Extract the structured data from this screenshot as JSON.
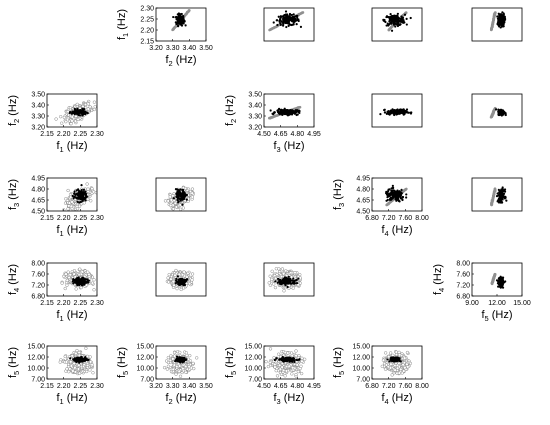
{
  "chart_data": {
    "type": "scatter",
    "layout": "scatterplot matrix (upper triangle: black & gray markers, lower triangle: gray open circles with black points)",
    "variables": [
      {
        "base": "f",
        "sub": "1",
        "unit": "(Hz)",
        "ticks": [
          "2.15",
          "2.20",
          "2.25",
          "2.30"
        ],
        "range": [
          2.15,
          2.3
        ]
      },
      {
        "base": "f",
        "sub": "2",
        "unit": "(Hz)",
        "ticks": [
          "3.20",
          "3.30",
          "3.40",
          "3.50"
        ],
        "range": [
          3.2,
          3.5
        ]
      },
      {
        "base": "f",
        "sub": "3",
        "unit": "(Hz)",
        "ticks": [
          "4.50",
          "4.65",
          "4.80",
          "4.95"
        ],
        "range": [
          4.5,
          4.95
        ]
      },
      {
        "base": "f",
        "sub": "4",
        "unit": "(Hz)",
        "ticks": [
          "6.80",
          "7.20",
          "7.60",
          "8.00"
        ],
        "range": [
          6.8,
          8.0
        ]
      },
      {
        "base": "f",
        "sub": "5",
        "unit": "(Hz)",
        "ticks": [
          "9.00",
          "12.00",
          "15.00"
        ],
        "range": [
          7.5,
          15.5
        ],
        "yticks": [
          "7.00",
          "10.00",
          "12.00",
          "15.00"
        ]
      }
    ],
    "panels": [
      {
        "row": 0,
        "col": 1,
        "x_var": "f2",
        "y_var": "f1",
        "labeled": true,
        "style": "upper",
        "black_cluster": {
          "cx": 3.345,
          "cy": 2.245,
          "sx": 0.012,
          "sy": 0.012
        },
        "gray_line": {
          "x0": 3.3,
          "y0": 2.2,
          "x1": 3.4,
          "y1": 2.29
        }
      },
      {
        "row": 0,
        "col": 2,
        "x_var": "f3",
        "y_var": "f1",
        "labeled": false,
        "style": "upper",
        "black_cluster": {
          "cx": 4.72,
          "cy": 2.245,
          "sx": 0.05,
          "sy": 0.012
        },
        "gray_line": {
          "x0": 4.55,
          "y0": 2.2,
          "x1": 4.85,
          "y1": 2.28
        }
      },
      {
        "row": 0,
        "col": 3,
        "x_var": "f4",
        "y_var": "f1",
        "labeled": false,
        "style": "upper",
        "black_cluster": {
          "cx": 7.35,
          "cy": 2.245,
          "sx": 0.12,
          "sy": 0.012
        },
        "gray_line": {
          "x0": 7.2,
          "y0": 2.2,
          "x1": 7.62,
          "y1": 2.28
        }
      },
      {
        "row": 0,
        "col": 4,
        "x_var": "f5",
        "y_var": "f1",
        "labeled": false,
        "style": "upper",
        "black_cluster": {
          "cx": 12.2,
          "cy": 2.245,
          "sx": 0.25,
          "sy": 0.015
        },
        "gray_line": {
          "x0": 10.6,
          "y0": 2.2,
          "x1": 11.2,
          "y1": 2.28
        }
      },
      {
        "row": 1,
        "col": 0,
        "x_var": "f1",
        "y_var": "f2",
        "labeled": true,
        "style": "lower",
        "gray_cloud": {
          "cx": 2.245,
          "cy": 3.34,
          "sx": 0.018,
          "sy": 0.035,
          "rho": 0.55
        },
        "black_cluster": {
          "cx": 2.245,
          "cy": 3.335,
          "sx": 0.01,
          "sy": 0.012
        }
      },
      {
        "row": 1,
        "col": 2,
        "x_var": "f3",
        "y_var": "f2",
        "labeled": true,
        "style": "upper",
        "black_cluster": {
          "cx": 4.71,
          "cy": 3.335,
          "sx": 0.05,
          "sy": 0.012
        },
        "gray_line": {
          "x0": 4.55,
          "y0": 3.28,
          "x1": 4.82,
          "y1": 3.38
        }
      },
      {
        "row": 1,
        "col": 3,
        "x_var": "f4",
        "y_var": "f2",
        "labeled": false,
        "style": "upper",
        "black_cluster": {
          "cx": 7.4,
          "cy": 3.335,
          "sx": 0.12,
          "sy": 0.012
        },
        "gray_line": null
      },
      {
        "row": 1,
        "col": 4,
        "x_var": "f5",
        "y_var": "f2",
        "labeled": false,
        "style": "upper",
        "black_cluster": {
          "cx": 12.2,
          "cy": 3.335,
          "sx": 0.25,
          "sy": 0.012
        },
        "gray_line": {
          "x0": 10.6,
          "y0": 3.29,
          "x1": 11.2,
          "y1": 3.37
        }
      },
      {
        "row": 2,
        "col": 0,
        "x_var": "f1",
        "y_var": "f3",
        "labeled": true,
        "style": "lower",
        "gray_cloud": {
          "cx": 2.245,
          "cy": 4.68,
          "sx": 0.016,
          "sy": 0.06,
          "rho": 0.6
        },
        "black_cluster": {
          "cx": 2.25,
          "cy": 4.71,
          "sx": 0.01,
          "sy": 0.04
        }
      },
      {
        "row": 2,
        "col": 1,
        "x_var": "f2",
        "y_var": "f3",
        "labeled": false,
        "style": "lower",
        "gray_cloud": {
          "cx": 3.345,
          "cy": 4.68,
          "sx": 0.03,
          "sy": 0.06,
          "rho": 0.5
        },
        "black_cluster": {
          "cx": 3.35,
          "cy": 4.71,
          "sx": 0.015,
          "sy": 0.04
        }
      },
      {
        "row": 2,
        "col": 3,
        "x_var": "f4",
        "y_var": "f3",
        "labeled": true,
        "style": "upper",
        "black_cluster": {
          "cx": 7.35,
          "cy": 4.71,
          "sx": 0.12,
          "sy": 0.04
        },
        "gray_line": {
          "x0": 7.15,
          "y0": 4.58,
          "x1": 7.62,
          "y1": 4.8
        }
      },
      {
        "row": 2,
        "col": 4,
        "x_var": "f5",
        "y_var": "f3",
        "labeled": false,
        "style": "upper",
        "black_cluster": {
          "cx": 12.2,
          "cy": 4.71,
          "sx": 0.25,
          "sy": 0.04
        },
        "gray_line": {
          "x0": 10.6,
          "y0": 4.58,
          "x1": 11.2,
          "y1": 4.8
        }
      },
      {
        "row": 3,
        "col": 0,
        "x_var": "f1",
        "y_var": "f4",
        "labeled": true,
        "style": "lower",
        "gray_cloud": {
          "cx": 2.245,
          "cy": 7.42,
          "sx": 0.018,
          "sy": 0.13,
          "rho": 0.0
        },
        "black_cluster": {
          "cx": 2.25,
          "cy": 7.33,
          "sx": 0.01,
          "sy": 0.06
        }
      },
      {
        "row": 3,
        "col": 1,
        "x_var": "f2",
        "y_var": "f4",
        "labeled": false,
        "style": "lower",
        "gray_cloud": {
          "cx": 3.345,
          "cy": 7.42,
          "sx": 0.03,
          "sy": 0.13,
          "rho": 0.0
        },
        "black_cluster": {
          "cx": 3.35,
          "cy": 7.33,
          "sx": 0.015,
          "sy": 0.06
        }
      },
      {
        "row": 3,
        "col": 2,
        "x_var": "f3",
        "y_var": "f4",
        "labeled": false,
        "style": "lower",
        "gray_cloud": {
          "cx": 4.7,
          "cy": 7.42,
          "sx": 0.06,
          "sy": 0.13,
          "rho": 0.0
        },
        "black_cluster": {
          "cx": 4.71,
          "cy": 7.33,
          "sx": 0.04,
          "sy": 0.06
        }
      },
      {
        "row": 3,
        "col": 4,
        "x_var": "f5",
        "y_var": "f4",
        "labeled": true,
        "style": "upper",
        "black_cluster": {
          "cx": 12.1,
          "cy": 7.3,
          "sx": 0.2,
          "sy": 0.08
        },
        "gray_line": {
          "x0": 10.7,
          "y0": 7.25,
          "x1": 11.2,
          "y1": 7.6
        }
      },
      {
        "row": 4,
        "col": 0,
        "x_var": "f1",
        "y_var": "f5",
        "labeled": true,
        "style": "lower",
        "gray_cloud": {
          "cx": 2.245,
          "cy": 11.3,
          "sx": 0.018,
          "sy": 1.1,
          "rho": 0.0
        },
        "black_cluster": {
          "cx": 2.25,
          "cy": 12.2,
          "sx": 0.01,
          "sy": 0.25
        }
      },
      {
        "row": 4,
        "col": 1,
        "x_var": "f2",
        "y_var": "f5",
        "labeled": true,
        "style": "lower",
        "gray_cloud": {
          "cx": 3.345,
          "cy": 11.3,
          "sx": 0.03,
          "sy": 1.1,
          "rho": 0.0
        },
        "black_cluster": {
          "cx": 3.35,
          "cy": 12.2,
          "sx": 0.015,
          "sy": 0.25
        }
      },
      {
        "row": 4,
        "col": 2,
        "x_var": "f3",
        "y_var": "f5",
        "labeled": true,
        "style": "lower",
        "gray_cloud": {
          "cx": 4.7,
          "cy": 11.3,
          "sx": 0.06,
          "sy": 1.1,
          "rho": 0.0
        },
        "black_cluster": {
          "cx": 4.71,
          "cy": 12.2,
          "sx": 0.04,
          "sy": 0.25
        }
      },
      {
        "row": 4,
        "col": 3,
        "x_var": "f4",
        "y_var": "f5",
        "labeled": true,
        "style": "lower",
        "gray_cloud": {
          "cx": 7.4,
          "cy": 11.3,
          "sx": 0.13,
          "sy": 1.1,
          "rho": 0.0
        },
        "black_cluster": {
          "cx": 7.35,
          "cy": 12.2,
          "sx": 0.06,
          "sy": 0.25
        }
      }
    ],
    "colors": {
      "black_series": "#000000",
      "gray_series": "#909090",
      "gray_edge": "#8a8a8a"
    }
  }
}
